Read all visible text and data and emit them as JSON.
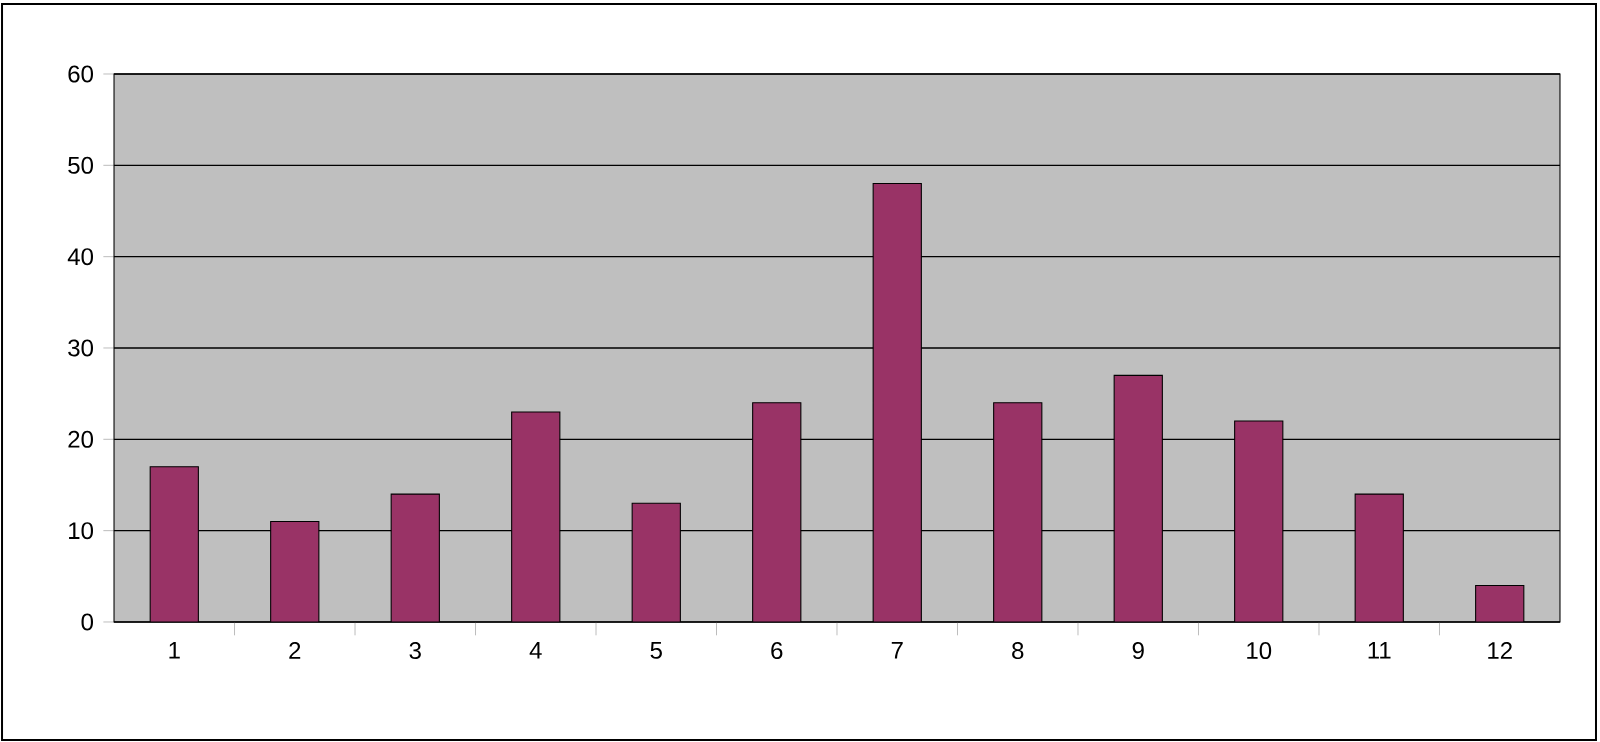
{
  "chart_data": {
    "type": "bar",
    "categories": [
      "1",
      "2",
      "3",
      "4",
      "5",
      "6",
      "7",
      "8",
      "9",
      "10",
      "11",
      "12"
    ],
    "values": [
      17,
      11,
      14,
      23,
      13,
      24,
      48,
      24,
      27,
      22,
      14,
      4
    ],
    "color": "#993366",
    "ylim": [
      0,
      60
    ],
    "yticks": [
      0,
      10,
      20,
      30,
      40,
      50,
      60
    ],
    "grid": "y"
  }
}
